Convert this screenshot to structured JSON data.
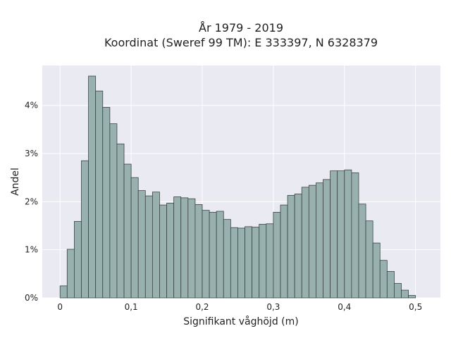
{
  "chart_data": {
    "type": "bar",
    "title_lines": [
      "År 1979 - 2019",
      "Koordinat (Sweref 99 TM): E 333397, N 6328379"
    ],
    "xlabel": "Signifikant våghöjd (m)",
    "ylabel": "Andel",
    "xlim": [
      -0.025,
      0.535
    ],
    "ylim": [
      0,
      0.0483
    ],
    "x_ticks": [
      {
        "value": 0.0,
        "label": "0"
      },
      {
        "value": 0.1,
        "label": "0,1"
      },
      {
        "value": 0.2,
        "label": "0,2"
      },
      {
        "value": 0.3,
        "label": "0,3"
      },
      {
        "value": 0.4,
        "label": "0,4"
      },
      {
        "value": 0.5,
        "label": "0,5"
      }
    ],
    "y_ticks": [
      {
        "value": 0.0,
        "label": "0%"
      },
      {
        "value": 0.01,
        "label": "1%"
      },
      {
        "value": 0.02,
        "label": "2%"
      },
      {
        "value": 0.03,
        "label": "3%"
      },
      {
        "value": 0.04,
        "label": "4%"
      }
    ],
    "grid": true,
    "bin_start": 0.0,
    "bin_width": 0.01,
    "values": [
      0.0025,
      0.0101,
      0.0159,
      0.0285,
      0.0461,
      0.043,
      0.0396,
      0.0362,
      0.032,
      0.0278,
      0.025,
      0.0223,
      0.0212,
      0.022,
      0.0193,
      0.0197,
      0.021,
      0.0208,
      0.0206,
      0.0194,
      0.0182,
      0.0178,
      0.018,
      0.0163,
      0.0146,
      0.0145,
      0.0148,
      0.0147,
      0.0153,
      0.0154,
      0.0178,
      0.0193,
      0.0213,
      0.0216,
      0.023,
      0.0234,
      0.0239,
      0.0246,
      0.0264,
      0.0264,
      0.0266,
      0.026,
      0.0195,
      0.016,
      0.0114,
      0.0078,
      0.0055,
      0.003,
      0.0016,
      0.0005
    ],
    "colors": {
      "background": "#eaeaf2",
      "bar_fill": "#98b1af",
      "bar_edge": "#3a4543",
      "grid": "#ffffff"
    }
  }
}
